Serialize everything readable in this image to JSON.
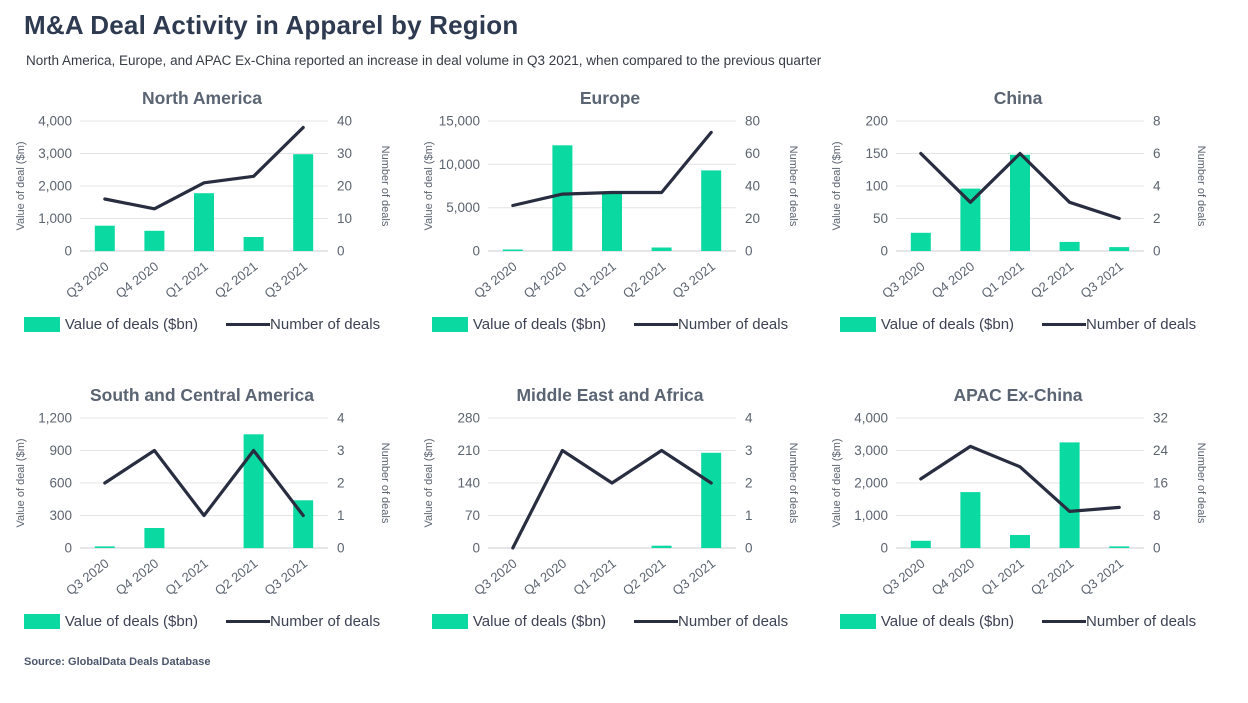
{
  "page": {
    "title": "M&A Deal Activity in Apparel by Region",
    "subtitle": "North America, Europe, and APAC Ex-China reported an increase in deal volume in Q3 2021, when compared to the previous quarter",
    "source": "Source: GlobalData Deals Database"
  },
  "colors": {
    "bar": "#0BD9A2",
    "line": "#282D40",
    "grid": "#E4E4E4",
    "zero_line": "#C9CDD2",
    "axis_text": "#5C6470",
    "title_text": "#2E3A50",
    "chart_title_text": "#5A6472"
  },
  "legend": {
    "bar_label": "Value of deals ($bn)",
    "line_label": "Number of deals"
  },
  "chart_data": [
    {
      "type": "bar+line",
      "title": "North America",
      "categories": [
        "Q3 2020",
        "Q4 2020",
        "Q1 2021",
        "Q2 2021",
        "Q3 2021"
      ],
      "ylabel_left": "Value of deal ($m)",
      "ylabel_right": "Number of deals",
      "left_ticks": [
        0,
        1000,
        2000,
        3000,
        4000
      ],
      "right_ticks": [
        0,
        10,
        20,
        30,
        40
      ],
      "bars": [
        780,
        620,
        1780,
        430,
        2980
      ],
      "line": [
        16,
        13,
        21,
        23,
        38
      ]
    },
    {
      "type": "bar+line",
      "title": "Europe",
      "categories": [
        "Q3 2020",
        "Q4 2020",
        "Q1 2021",
        "Q2 2021",
        "Q3 2021"
      ],
      "ylabel_left": "Value of deal ($m)",
      "ylabel_right": "Number of deals",
      "left_ticks": [
        0,
        5000,
        10000,
        15000
      ],
      "right_ticks": [
        0,
        20,
        40,
        60,
        80
      ],
      "bars": [
        90,
        12200,
        6700,
        400,
        9300
      ],
      "line": [
        28,
        35,
        36,
        36,
        73
      ]
    },
    {
      "type": "bar+line",
      "title": "China",
      "categories": [
        "Q3 2020",
        "Q4 2020",
        "Q1 2021",
        "Q2 2021",
        "Q3 2021"
      ],
      "ylabel_left": "Value of deal ($m)",
      "ylabel_right": "Number of deals",
      "left_ticks": [
        0,
        50,
        100,
        150,
        200
      ],
      "right_ticks": [
        0,
        2,
        4,
        6,
        8
      ],
      "bars": [
        28,
        96,
        148,
        14,
        6
      ],
      "line": [
        6,
        3,
        6,
        3,
        2
      ]
    },
    {
      "type": "bar+line",
      "title": "South and Central America",
      "categories": [
        "Q3 2020",
        "Q4 2020",
        "Q1 2021",
        "Q2 2021",
        "Q3 2021"
      ],
      "ylabel_left": "Value of deal ($m)",
      "ylabel_right": "Number of deals",
      "left_ticks": [
        0,
        300,
        600,
        900,
        1200
      ],
      "right_ticks": [
        0,
        1,
        2,
        3,
        4
      ],
      "bars": [
        15,
        185,
        0,
        1050,
        440
      ],
      "line": [
        2,
        3,
        1,
        3,
        1
      ]
    },
    {
      "type": "bar+line",
      "title": "Middle East and Africa",
      "categories": [
        "Q3 2020",
        "Q4 2020",
        "Q1 2021",
        "Q2 2021",
        "Q3 2021"
      ],
      "ylabel_left": "Value of deal ($m)",
      "ylabel_right": "Number of deals",
      "left_ticks": [
        0,
        70,
        140,
        210,
        280
      ],
      "right_ticks": [
        0,
        1,
        2,
        3,
        4
      ],
      "bars": [
        0,
        0,
        0,
        5,
        205
      ],
      "line": [
        0,
        3,
        2,
        3,
        2
      ]
    },
    {
      "type": "bar+line",
      "title": "APAC Ex-China",
      "categories": [
        "Q3 2020",
        "Q4 2020",
        "Q1 2021",
        "Q2 2021",
        "Q3 2021"
      ],
      "ylabel_left": "Value of deal ($m)",
      "ylabel_right": "Number of deals",
      "left_ticks": [
        0,
        1000,
        2000,
        3000,
        4000
      ],
      "right_ticks": [
        0,
        8,
        16,
        24,
        32
      ],
      "bars": [
        220,
        1720,
        400,
        3250,
        50
      ],
      "line": [
        17,
        25,
        20,
        9,
        10
      ]
    }
  ]
}
